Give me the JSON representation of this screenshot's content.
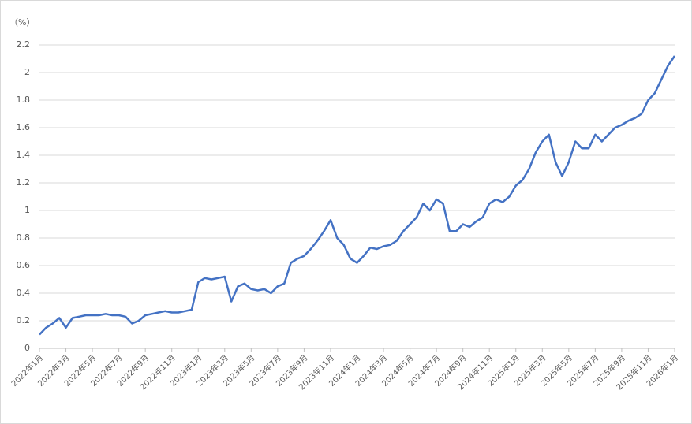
{
  "chart_data": {
    "type": "line",
    "y_label": "（%）",
    "categories": [
      "2022年1月",
      null,
      null,
      null,
      "2022年3月",
      null,
      null,
      null,
      "2022年5月",
      null,
      null,
      null,
      "2022年7月",
      null,
      null,
      null,
      "2022年9月",
      null,
      null,
      null,
      "2022年11月",
      null,
      null,
      null,
      "2023年1月",
      null,
      null,
      null,
      "2023年3月",
      null,
      null,
      null,
      "2023年5月",
      null,
      null,
      null,
      "2023年7月",
      null,
      null,
      null,
      "2023年9月",
      null,
      null,
      null,
      "2023年11月",
      null,
      null,
      null,
      "2024年1月",
      null,
      null,
      null,
      "2024年3月",
      null,
      null,
      null,
      "2024年5月",
      null,
      null,
      null,
      "2024年7月",
      null,
      null,
      null,
      "2024年9月",
      null,
      null,
      null,
      "2024年11月",
      null,
      null,
      null,
      "2025年1月",
      null,
      null,
      null,
      "2025年3月",
      null,
      null,
      null,
      "2025年5月",
      null,
      null,
      null,
      "2025年7月",
      null,
      null,
      null,
      "2025年9月",
      null,
      null,
      null,
      "2025年11月",
      null,
      null,
      null,
      "2026年1月"
    ],
    "values": [
      0.1,
      0.15,
      0.18,
      0.22,
      0.15,
      0.22,
      0.23,
      0.24,
      0.24,
      0.24,
      0.25,
      0.24,
      0.24,
      0.23,
      0.18,
      0.2,
      0.24,
      0.25,
      0.26,
      0.27,
      0.26,
      0.26,
      0.27,
      0.28,
      0.48,
      0.51,
      0.5,
      0.51,
      0.52,
      0.34,
      0.45,
      0.47,
      0.43,
      0.42,
      0.43,
      0.4,
      0.45,
      0.47,
      0.62,
      0.65,
      0.67,
      0.72,
      0.78,
      0.85,
      0.93,
      0.8,
      0.75,
      0.65,
      0.62,
      0.67,
      0.73,
      0.72,
      0.74,
      0.75,
      0.78,
      0.85,
      0.9,
      0.95,
      1.05,
      1.0,
      1.08,
      1.05,
      0.85,
      0.85,
      0.9,
      0.88,
      0.92,
      0.95,
      1.05,
      1.08,
      1.06,
      1.1,
      1.18,
      1.22,
      1.3,
      1.42,
      1.5,
      1.55,
      1.35,
      1.25,
      1.35,
      1.5,
      1.45,
      1.45,
      1.55,
      1.5,
      1.55,
      1.6,
      1.62,
      1.65,
      1.67,
      1.7,
      1.8,
      1.85,
      1.95,
      2.05,
      2.12
    ],
    "color": "#4472c4",
    "ylim": [
      0,
      2.2
    ],
    "yticks": [
      0,
      0.2,
      0.4,
      0.6,
      0.8,
      1,
      1.2,
      1.4,
      1.6,
      1.8,
      2,
      2.2
    ],
    "grid": true
  }
}
